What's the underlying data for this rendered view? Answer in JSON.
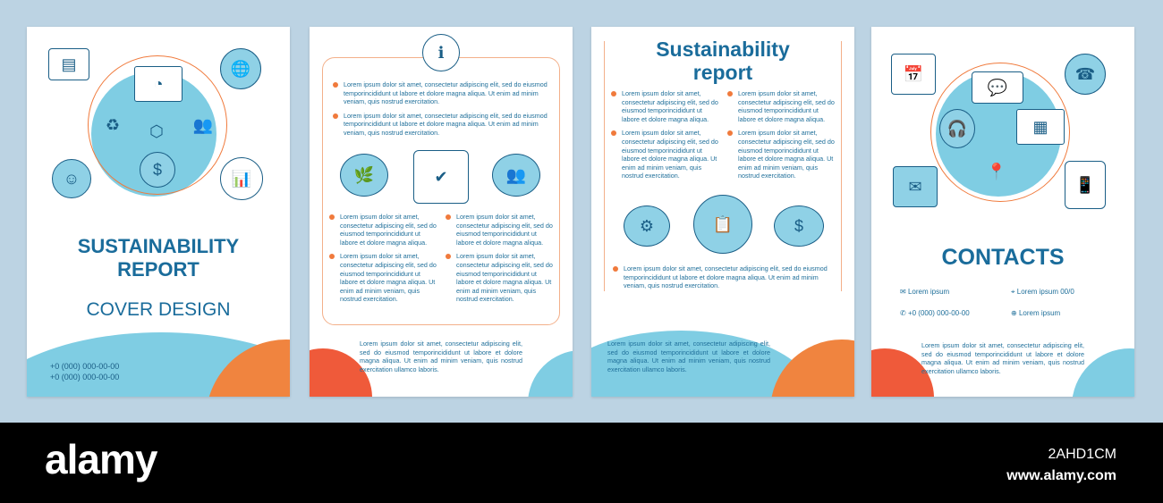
{
  "lorem": {
    "long": "Lorem ipsum dolor sit amet, consectetur adipiscing elit, sed do eiusmod temporincididunt ut labore et dolore magna aliqua. Ut enim ad minim veniam, quis nostrud exercitation.",
    "short": "Lorem ipsum dolor sit amet, consectetur adipiscing elit, sed do eiusmod temporincididunt ut labore et dolore magna aliqua.",
    "medium": "Lorem ipsum dolor sit amet, consectetur adipiscing elit, sed do eiusmod temporincididunt ut labore et dolore magna aliqua. Ut enim ad minim veniam, quis nostrud exercitation.",
    "footer": "Lorem ipsum dolor sit amet, consectetur adipiscing elit, sed do eiusmod temporincididunt ut labore et dolore magna aliqua. Ut enim ad minim veniam, quis nostrud exercitation ullamco laboris."
  },
  "cover": {
    "title_line1": "SUSTAINABILITY",
    "title_line2": "REPORT",
    "subtitle": "COVER DESIGN",
    "phone1": "+0 (000) 000-00-00",
    "phone2": "+0 (000) 000-00-00"
  },
  "report": {
    "title_line1": "Sustainability",
    "title_line2": "report"
  },
  "contacts": {
    "title": "CONTACTS",
    "email": "Lorem ipsum",
    "address": "Lorem ipsum 00/0",
    "phone": "+0 (000) 000-00-00",
    "web": "Lorem ipsum"
  },
  "colors": {
    "accent_blue": "#1a6c9b",
    "light_blue": "#7fcde3",
    "orange": "#f07a3c",
    "background": "#bcd3e3"
  },
  "watermark": {
    "logo": "alamy",
    "image_id": "2AHD1CM",
    "url": "www.alamy.com"
  }
}
